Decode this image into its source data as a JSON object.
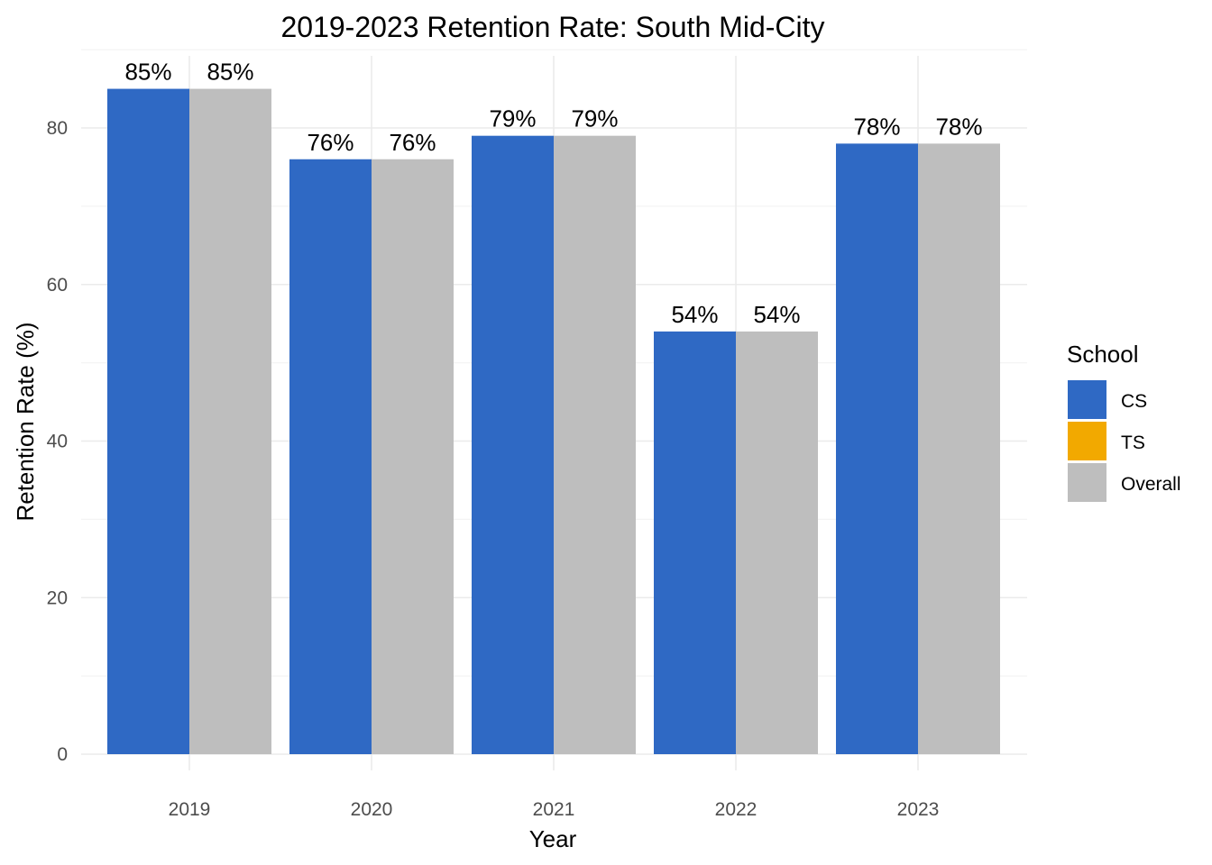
{
  "chart_data": {
    "type": "bar",
    "title": "2019-2023 Retention Rate: South Mid-City",
    "xlabel": "Year",
    "ylabel": "Retention Rate (%)",
    "categories": [
      "2019",
      "2020",
      "2021",
      "2022",
      "2023"
    ],
    "series": [
      {
        "name": "CS",
        "color": "#2F69C4",
        "values": [
          85,
          76,
          79,
          54,
          78
        ],
        "labels": [
          "85%",
          "76%",
          "79%",
          "54%",
          "78%"
        ]
      },
      {
        "name": "Overall",
        "color": "#BEBEBE",
        "values": [
          85,
          76,
          79,
          54,
          78
        ],
        "labels": [
          "85%",
          "76%",
          "79%",
          "54%",
          "78%"
        ]
      }
    ],
    "ylim": [
      0,
      90
    ],
    "yticks": [
      0,
      20,
      40,
      60,
      80
    ],
    "grid": true,
    "legend": {
      "title": "School",
      "position": "right",
      "entries": [
        {
          "name": "CS",
          "color": "#2F69C4"
        },
        {
          "name": "TS",
          "color": "#F2A900"
        },
        {
          "name": "Overall",
          "color": "#BEBEBE"
        }
      ]
    }
  }
}
